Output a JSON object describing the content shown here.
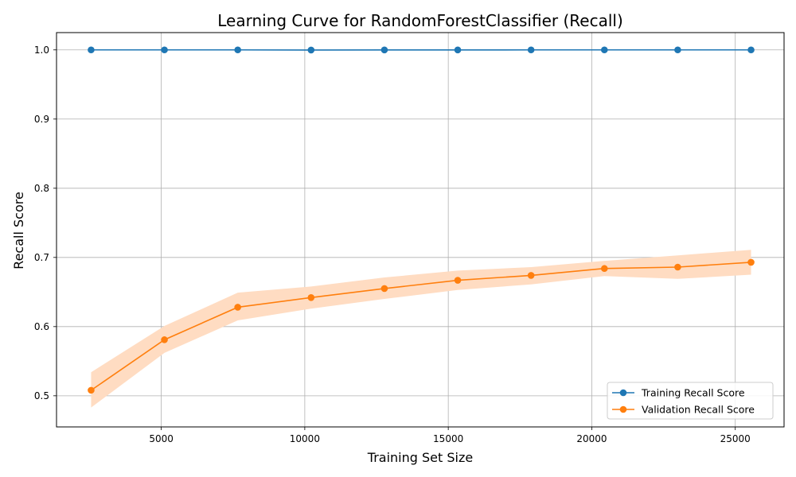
{
  "chart_data": {
    "type": "line",
    "title": "Learning Curve for RandomForestClassifier (Recall)",
    "xlabel": "Training Set Size",
    "ylabel": "Recall Score",
    "xlim": [
      1350,
      26700
    ],
    "ylim": [
      0.455,
      1.025
    ],
    "xticks": [
      5000,
      10000,
      15000,
      20000,
      25000
    ],
    "yticks": [
      0.5,
      0.6,
      0.7,
      0.8,
      0.9,
      1.0
    ],
    "grid": true,
    "legend_position": "lower-right",
    "x": [
      2555,
      5110,
      7665,
      10220,
      12775,
      15330,
      17885,
      20440,
      22995,
      25550
    ],
    "series": [
      {
        "name": "Training Recall Score",
        "color": "#1f77b4",
        "values": [
          1.0,
          1.0,
          1.0,
          0.9998,
          0.9999,
          0.9999,
          1.0,
          1.0,
          1.0,
          1.0
        ],
        "band_lower": [
          1.0,
          1.0,
          1.0,
          0.9997,
          0.9998,
          0.9998,
          1.0,
          1.0,
          1.0,
          1.0
        ],
        "band_upper": [
          1.0,
          1.0,
          1.0,
          0.9999,
          1.0,
          1.0,
          1.0,
          1.0,
          1.0,
          1.0
        ]
      },
      {
        "name": "Validation Recall Score",
        "color": "#ff7f0e",
        "band_color": "#ffdcc2",
        "values": [
          0.508,
          0.581,
          0.628,
          0.642,
          0.655,
          0.667,
          0.674,
          0.684,
          0.686,
          0.693
        ],
        "band_lower": [
          0.483,
          0.562,
          0.609,
          0.626,
          0.64,
          0.653,
          0.661,
          0.673,
          0.669,
          0.675
        ],
        "band_upper": [
          0.534,
          0.601,
          0.649,
          0.658,
          0.671,
          0.681,
          0.686,
          0.695,
          0.703,
          0.711
        ]
      }
    ]
  }
}
